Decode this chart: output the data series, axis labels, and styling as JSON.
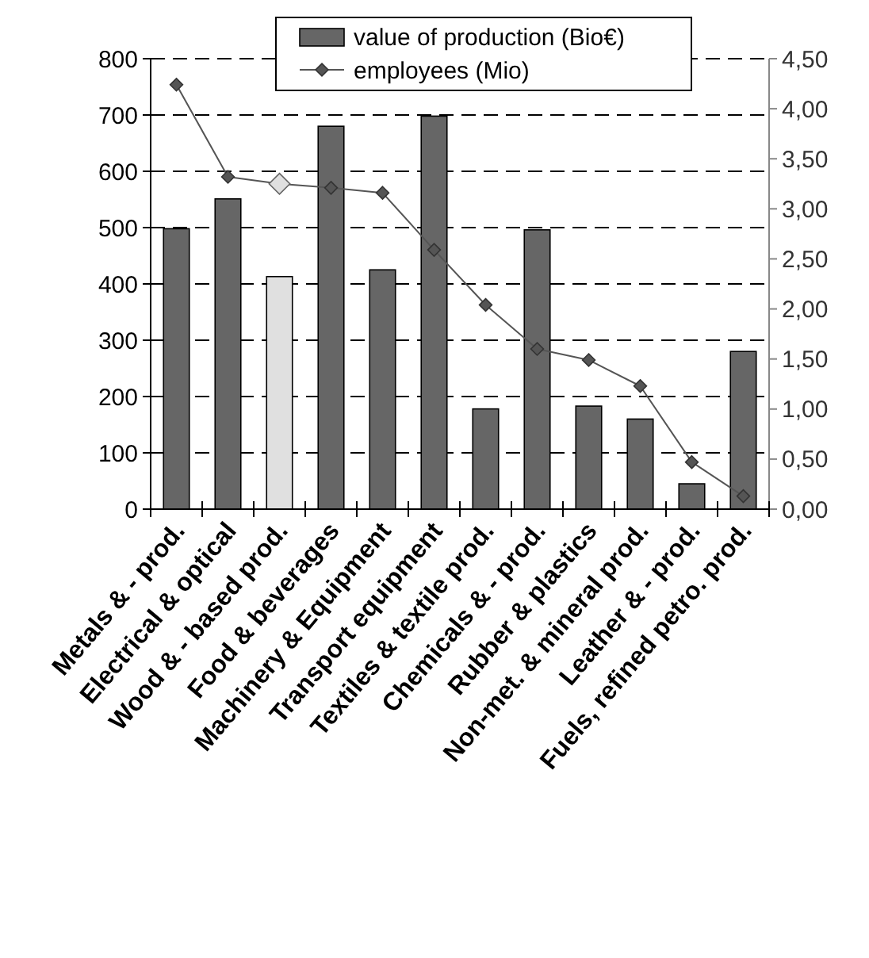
{
  "chart_data": {
    "type": "bar",
    "categories": [
      "Metals & - prod.",
      "Electrical & optical",
      "Wood & - based prod.",
      "Food & beverages",
      "Machinery & Equipment",
      "Transport equipment",
      "Textiles & textile prod.",
      "Chemicals & - prod.",
      "Rubber & plastics",
      "Non-met. & mineral prod.",
      "Leather & - prod.",
      "Fuels, refined petro. prod."
    ],
    "series": [
      {
        "name": "value of production (Bio€)",
        "color": "#666666",
        "colors": [
          "#666666",
          "#666666",
          "#e0e0e0",
          "#666666",
          "#666666",
          "#666666",
          "#666666",
          "#666666",
          "#666666",
          "#666666",
          "#666666",
          "#666666"
        ],
        "values": [
          498,
          551,
          413,
          680,
          425,
          698,
          178,
          496,
          183,
          160,
          45,
          280
        ]
      },
      {
        "name": "employees (Mio)",
        "type": "line",
        "axis": "y2",
        "color": "#555555",
        "colors": [
          "#555555",
          "#555555",
          "#e0e0e0",
          "#555555",
          "#555555",
          "#555555",
          "#555555",
          "#555555",
          "#555555",
          "#555555",
          "#555555",
          "#555555"
        ],
        "values": [
          4.24,
          3.32,
          3.25,
          3.21,
          3.16,
          2.59,
          2.04,
          1.6,
          1.49,
          1.23,
          0.47,
          0.13
        ]
      }
    ],
    "ylim": [
      0,
      800
    ],
    "yticks": [
      0,
      100,
      200,
      300,
      400,
      500,
      600,
      700,
      800
    ],
    "y2lim": [
      0,
      4.5
    ],
    "y2ticks": [
      {
        "value": 0,
        "label": "0,00"
      },
      {
        "value": 0.5,
        "label": "0,50"
      },
      {
        "value": 1,
        "label": "1,00"
      },
      {
        "value": 1.5,
        "label": "1,50"
      },
      {
        "value": 2,
        "label": "2,00"
      },
      {
        "value": 2.5,
        "label": "2,50"
      },
      {
        "value": 3,
        "label": "3,00"
      },
      {
        "value": 3.5,
        "label": "3,50"
      },
      {
        "value": 4,
        "label": "4,00"
      },
      {
        "value": 4.5,
        "label": "4,50"
      }
    ],
    "grid": "y",
    "legend": "top",
    "marker": "diamond",
    "line_style": "solid"
  }
}
